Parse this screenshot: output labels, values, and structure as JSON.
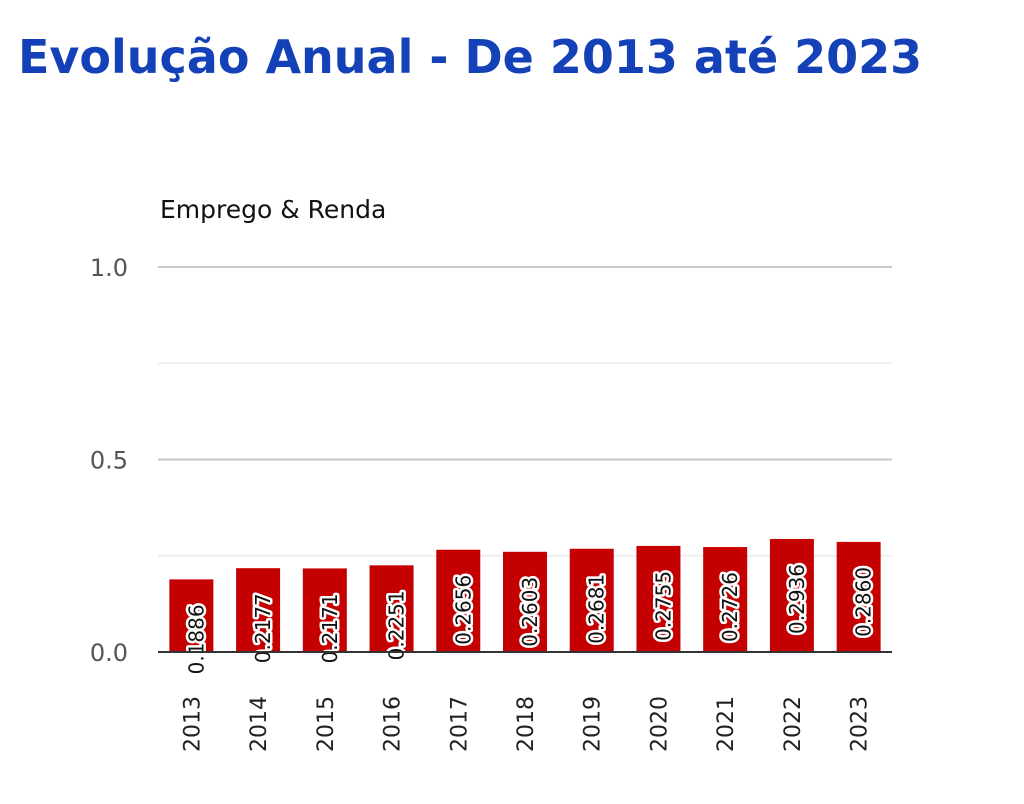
{
  "page": {
    "title": "Evolução Anual - De 2013 até 2023"
  },
  "colors": {
    "title": "#1440b8",
    "bar": "#c50000",
    "major_grid": "#c8c8c8",
    "minor_grid": "#eeeeee",
    "axis": "#333333"
  },
  "chart_data": {
    "type": "bar",
    "title": "Emprego & Renda",
    "xlabel": "",
    "ylabel": "",
    "categories": [
      "2013",
      "2014",
      "2015",
      "2016",
      "2017",
      "2018",
      "2019",
      "2020",
      "2021",
      "2022",
      "2023"
    ],
    "values": [
      0.1886,
      0.2177,
      0.2171,
      0.2251,
      0.2656,
      0.2603,
      0.2681,
      0.2755,
      0.2726,
      0.2936,
      0.286
    ],
    "value_labels": [
      "0.1886",
      "0.2177",
      "0.2171",
      "0.2251",
      "0.2656",
      "0.2603",
      "0.2681",
      "0.2755",
      "0.2726",
      "0.2936",
      "0.2860"
    ],
    "ylim": [
      0,
      1
    ],
    "yticks": [
      0,
      0.5,
      1
    ],
    "ytick_labels": [
      "0.0",
      "0.5",
      "1.0"
    ],
    "minor_yticks": [
      0.25,
      0.75
    ],
    "grid": true,
    "legend": "none"
  }
}
